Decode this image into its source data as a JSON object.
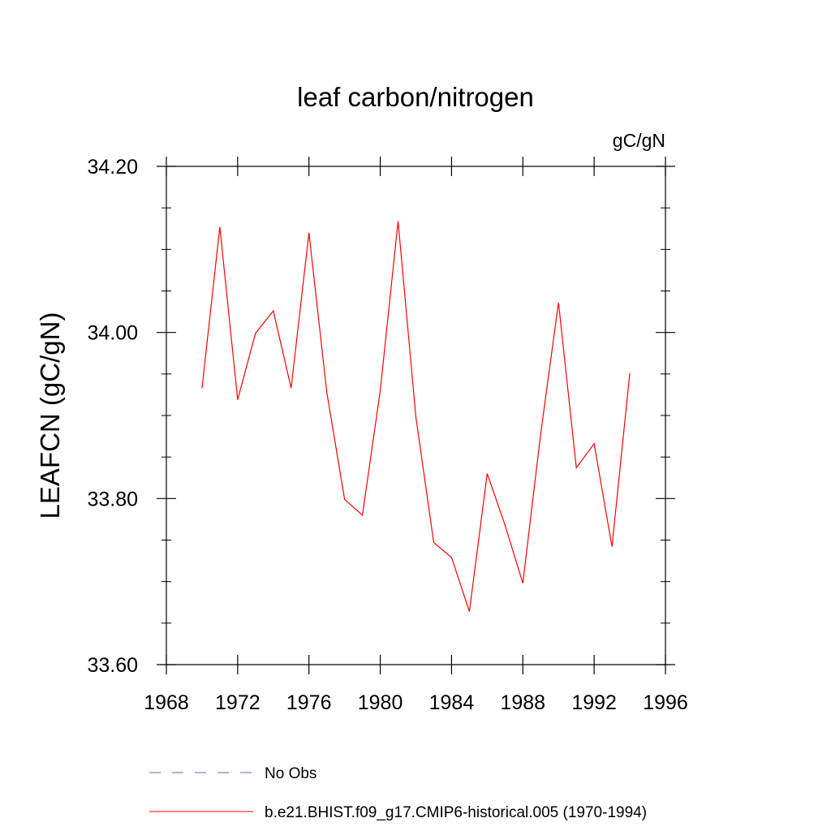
{
  "chart_data": {
    "type": "line",
    "title": "leaf carbon/nitrogen",
    "units_label": "gC/gN",
    "xlabel": "",
    "ylabel": "LEAFCN  (gC/gN)",
    "xlim": [
      1968,
      1996
    ],
    "ylim": [
      33.6,
      34.2
    ],
    "x_ticks": [
      1968,
      1972,
      1976,
      1980,
      1984,
      1988,
      1992,
      1996
    ],
    "x_tick_labels": [
      "1968",
      "1972",
      "1976",
      "1980",
      "1984",
      "1988",
      "1992",
      "1996"
    ],
    "y_ticks": [
      33.6,
      33.8,
      34.0,
      34.2
    ],
    "y_tick_labels": [
      "33.60",
      "33.80",
      "34.00",
      "34.20"
    ],
    "y_minor_step": 0.05,
    "grid": false,
    "legend_position": "bottom",
    "series": [
      {
        "name": "No Obs",
        "color": "#6666cc",
        "style": "dashed",
        "x": [],
        "values": []
      },
      {
        "name": "b.e21.BHIST.f09_g17.CMIP6-historical.005 (1970-1994)",
        "color": "#ff0000",
        "style": "solid",
        "x": [
          1970,
          1971,
          1972,
          1973,
          1974,
          1975,
          1976,
          1977,
          1978,
          1979,
          1980,
          1981,
          1982,
          1983,
          1984,
          1985,
          1986,
          1987,
          1988,
          1989,
          1990,
          1991,
          1992,
          1993,
          1994
        ],
        "values": [
          33.933,
          34.127,
          33.919,
          33.999,
          34.026,
          33.933,
          34.12,
          33.928,
          33.799,
          33.78,
          33.93,
          34.134,
          33.898,
          33.747,
          33.729,
          33.664,
          33.83,
          33.768,
          33.698,
          33.878,
          34.036,
          33.837,
          33.866,
          33.742,
          33.951
        ]
      }
    ]
  }
}
